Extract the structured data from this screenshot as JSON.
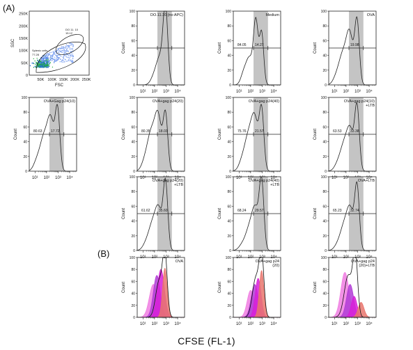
{
  "figure": {
    "label_a": "(A)",
    "label_b": "(B)",
    "x_caption": "CFSE (FL-1)"
  },
  "colors": {
    "gate_gray": "#c4c4c4",
    "line": "#222222",
    "overlay_black": "#111111",
    "overlay_white": "#ffffff",
    "overlay_red": "#e9766d",
    "overlay_magenta": "#d81ed8",
    "overlay_violet": "#b13cd6",
    "overlay_pink": "#f07ee2"
  },
  "chart_data": [
    {
      "id": "scatter",
      "type": "scatter",
      "xlabel": "FSC",
      "ylabel": "SSC",
      "x_ticks": [
        "50K",
        "100K",
        "150K",
        "200K",
        "250K"
      ],
      "y_ticks": [
        "0",
        "50K",
        "100K",
        "150K",
        "200K",
        "250K"
      ],
      "xlim": [
        0,
        262144
      ],
      "ylim": [
        0,
        262144
      ],
      "gates": [
        {
          "name": "Splenic cells",
          "value": "77.28"
        },
        {
          "name": "DO 11. 10",
          "value": "15.12"
        }
      ]
    },
    {
      "id": "h-do1110",
      "type": "histogram",
      "title": "DO.11.10 (no APC)",
      "ylabel": "Count",
      "ylim": [
        0,
        100
      ],
      "y_ticks": [
        "0",
        "20",
        "40",
        "60",
        "80",
        "100"
      ],
      "x_ticks": [
        "10¹",
        "10²",
        "10³",
        "10⁴"
      ],
      "xlim_decades": [
        0.5,
        4.6
      ],
      "gate": [
        2.25,
        3.5
      ],
      "marker_y": 50,
      "values": [],
      "peaks": [
        [
          2.95,
          0.2,
          100
        ],
        [
          2.5,
          0.3,
          35
        ],
        [
          2.0,
          0.3,
          12
        ]
      ]
    },
    {
      "id": "h-medium",
      "type": "histogram",
      "title": "Medium",
      "ylabel": "Count",
      "ylim": [
        0,
        100
      ],
      "y_ticks": [
        "0",
        "20",
        "40",
        "60",
        "80",
        "100"
      ],
      "x_ticks": [
        "10¹",
        "10²",
        "10³",
        "10⁴"
      ],
      "xlim_decades": [
        0.5,
        4.6
      ],
      "gate": [
        2.25,
        3.5
      ],
      "marker_y": 50,
      "values": [
        "84.05",
        "14.27"
      ],
      "peaks": [
        [
          2.95,
          0.18,
          70
        ],
        [
          2.45,
          0.2,
          85
        ],
        [
          1.9,
          0.28,
          35
        ],
        [
          1.4,
          0.25,
          15
        ]
      ]
    },
    {
      "id": "h-ova",
      "type": "histogram",
      "title": "OVA",
      "ylabel": "Count",
      "ylim": [
        0,
        100
      ],
      "y_ticks": [
        "0",
        "20",
        "40",
        "60",
        "80",
        "100"
      ],
      "x_ticks": [
        "10¹",
        "10²",
        "10³",
        "10⁴"
      ],
      "xlim_decades": [
        0.5,
        4.6
      ],
      "gate": [
        2.25,
        3.5
      ],
      "marker_y": 50,
      "values": [
        "",
        "19.98"
      ],
      "peaks": [
        [
          2.95,
          0.2,
          85
        ],
        [
          2.3,
          0.3,
          70
        ],
        [
          1.7,
          0.3,
          35
        ],
        [
          1.2,
          0.3,
          12
        ]
      ]
    },
    {
      "id": "h-gag10",
      "type": "histogram",
      "title": "OVA+Gag p24(10)",
      "ylabel": "Count",
      "ylim": [
        0,
        100
      ],
      "y_ticks": [
        "0",
        "20",
        "40",
        "60",
        "80",
        "100"
      ],
      "x_ticks": [
        "10¹",
        "10²",
        "10³",
        "10⁴"
      ],
      "xlim_decades": [
        0.5,
        4.6
      ],
      "gate": [
        2.25,
        3.5
      ],
      "marker_y": 50,
      "values": [
        "80.63",
        "17.72"
      ],
      "peaks": [
        [
          2.95,
          0.2,
          80
        ],
        [
          2.35,
          0.3,
          70
        ],
        [
          1.75,
          0.3,
          40
        ],
        [
          1.2,
          0.3,
          15
        ]
      ]
    },
    {
      "id": "h-gag20",
      "type": "histogram",
      "title": "OVA+gag p24(20)",
      "ylabel": "Count",
      "ylim": [
        0,
        100
      ],
      "y_ticks": [
        "0",
        "20",
        "40",
        "60",
        "80",
        "100"
      ],
      "x_ticks": [
        "10¹",
        "10²",
        "10³",
        "10⁴"
      ],
      "xlim_decades": [
        0.5,
        4.6
      ],
      "gate": [
        2.25,
        3.5
      ],
      "marker_y": 50,
      "values": [
        "80.35",
        "18.03"
      ],
      "peaks": [
        [
          2.95,
          0.2,
          75
        ],
        [
          2.3,
          0.3,
          75
        ],
        [
          1.7,
          0.3,
          45
        ],
        [
          1.2,
          0.3,
          15
        ]
      ]
    },
    {
      "id": "h-gag40",
      "type": "histogram",
      "title": "OVA+gag p24(40)",
      "ylabel": "Count",
      "ylim": [
        0,
        100
      ],
      "y_ticks": [
        "0",
        "20",
        "40",
        "60",
        "80",
        "100"
      ],
      "x_ticks": [
        "10¹",
        "10²",
        "10³",
        "10⁴"
      ],
      "xlim_decades": [
        0.5,
        4.6
      ],
      "gate": [
        2.25,
        3.5
      ],
      "marker_y": 50,
      "values": [
        "75.76",
        "21.57"
      ],
      "peaks": [
        [
          2.95,
          0.2,
          80
        ],
        [
          2.35,
          0.3,
          70
        ],
        [
          1.8,
          0.3,
          40
        ],
        [
          1.3,
          0.3,
          15
        ]
      ]
    },
    {
      "id": "h-gag10-ltb",
      "type": "histogram",
      "title": "OVA+gag p24(10)",
      "title2": "+LTB",
      "ylabel": "Count",
      "ylim": [
        0,
        100
      ],
      "y_ticks": [
        "0",
        "20",
        "40",
        "60",
        "80",
        "100"
      ],
      "x_ticks": [
        "10¹",
        "10²",
        "10³",
        "10⁴"
      ],
      "xlim_decades": [
        0.5,
        4.6
      ],
      "gate": [
        2.25,
        3.5
      ],
      "marker_y": 50,
      "values": [
        "63.53",
        "33.38"
      ],
      "peaks": [
        [
          2.95,
          0.2,
          85
        ],
        [
          2.35,
          0.3,
          55
        ],
        [
          1.8,
          0.3,
          30
        ],
        [
          1.3,
          0.3,
          10
        ]
      ]
    },
    {
      "id": "h-gag20-ltb",
      "type": "histogram",
      "title": "OVA+gag p24(20)",
      "title2": "+LTB",
      "ylabel": "Count",
      "ylim": [
        0,
        100
      ],
      "y_ticks": [
        "0",
        "20",
        "40",
        "60",
        "80",
        "100"
      ],
      "x_ticks": [
        "10¹",
        "10²",
        "10³",
        "10⁴"
      ],
      "xlim_decades": [
        0.5,
        4.6
      ],
      "gate": [
        2.25,
        3.5
      ],
      "marker_y": 50,
      "values": [
        "61.62",
        "35.60"
      ],
      "peaks": [
        [
          2.95,
          0.2,
          90
        ],
        [
          2.35,
          0.3,
          55
        ],
        [
          1.8,
          0.3,
          30
        ],
        [
          1.3,
          0.3,
          10
        ]
      ]
    },
    {
      "id": "h-gag40-ltb",
      "type": "histogram",
      "title": "OVA+gag p24(40)",
      "title2": "+LTB",
      "ylabel": "Count",
      "ylim": [
        0,
        100
      ],
      "y_ticks": [
        "0",
        "20",
        "40",
        "60",
        "80",
        "100"
      ],
      "x_ticks": [
        "10¹",
        "10²",
        "10³",
        "10⁴"
      ],
      "xlim_decades": [
        0.5,
        4.6
      ],
      "gate": [
        2.25,
        3.5
      ],
      "marker_y": 50,
      "values": [
        "68.24",
        "29.57"
      ],
      "peaks": [
        [
          2.95,
          0.2,
          90
        ],
        [
          2.4,
          0.3,
          55
        ],
        [
          1.85,
          0.3,
          25
        ],
        [
          1.3,
          0.3,
          8
        ]
      ]
    },
    {
      "id": "h-ova-ltb",
      "type": "histogram",
      "title": "OVA+LTB",
      "ylabel": "Count",
      "ylim": [
        0,
        100
      ],
      "y_ticks": [
        "0",
        "20",
        "40",
        "60",
        "80",
        "100"
      ],
      "x_ticks": [
        "10¹",
        "10²",
        "10³",
        "10⁴"
      ],
      "xlim_decades": [
        0.5,
        4.6
      ],
      "gate": [
        2.25,
        3.5
      ],
      "marker_y": 50,
      "values": [
        "65.23",
        "32.74"
      ],
      "peaks": [
        [
          2.95,
          0.2,
          85
        ],
        [
          2.35,
          0.3,
          55
        ],
        [
          1.8,
          0.3,
          28
        ],
        [
          1.3,
          0.3,
          8
        ]
      ]
    },
    {
      "id": "o-ova",
      "type": "overlay",
      "title": "OVA",
      "ylabel": "Count",
      "ylim": [
        0,
        100
      ],
      "y_ticks": [
        "0",
        "20",
        "40",
        "60",
        "80",
        "100"
      ],
      "x_ticks": [
        "10¹",
        "10²",
        "10³",
        "10⁴"
      ],
      "xlim_decades": [
        0.5,
        4.6
      ],
      "layers": [
        {
          "color": "overlay_pink",
          "peaks": [
            [
              1.9,
              0.35,
              55
            ]
          ]
        },
        {
          "color": "overlay_violet",
          "peaks": [
            [
              2.2,
              0.3,
              70
            ]
          ]
        },
        {
          "color": "overlay_magenta",
          "peaks": [
            [
              2.55,
              0.3,
              80
            ]
          ]
        },
        {
          "color": "overlay_red",
          "peaks": [
            [
              2.9,
              0.2,
              82
            ]
          ]
        },
        {
          "color": "overlay_white",
          "outline": "overlay_black",
          "peaks": [
            [
              2.9,
              0.2,
              100
            ],
            [
              2.4,
              0.3,
              60
            ]
          ]
        }
      ]
    },
    {
      "id": "o-gag",
      "type": "overlay",
      "title": "OVA+gag p24",
      "title2": "(20)",
      "ylabel": "Count",
      "ylim": [
        0,
        100
      ],
      "y_ticks": [
        "0",
        "20",
        "40",
        "60",
        "80",
        "100"
      ],
      "x_ticks": [
        "10¹",
        "10²",
        "10³",
        "10⁴"
      ],
      "xlim_decades": [
        0.5,
        4.6
      ],
      "layers": [
        {
          "color": "overlay_pink",
          "peaks": [
            [
              2.0,
              0.3,
              45
            ]
          ]
        },
        {
          "color": "overlay_violet",
          "peaks": [
            [
              2.35,
              0.3,
              55
            ]
          ]
        },
        {
          "color": "overlay_magenta",
          "peaks": [
            [
              2.65,
              0.25,
              65
            ]
          ]
        },
        {
          "color": "overlay_red",
          "peaks": [
            [
              2.95,
              0.2,
              78
            ]
          ]
        },
        {
          "color": "overlay_white",
          "outline": "overlay_black",
          "peaks": [
            [
              2.95,
              0.2,
              100
            ],
            [
              2.45,
              0.3,
              65
            ]
          ]
        }
      ]
    },
    {
      "id": "o-gag-ltb",
      "type": "overlay",
      "title": "OVA+gag p24",
      "title2": "(20)+LTB",
      "ylabel": "Count",
      "ylim": [
        0,
        100
      ],
      "y_ticks": [
        "0",
        "20",
        "40",
        "60",
        "80",
        "100"
      ],
      "x_ticks": [
        "10¹",
        "10²",
        "10³",
        "10⁴"
      ],
      "xlim_decades": [
        0.5,
        4.6
      ],
      "layers": [
        {
          "color": "overlay_pink",
          "peaks": [
            [
              1.9,
              0.35,
              75
            ]
          ]
        },
        {
          "color": "overlay_violet",
          "peaks": [
            [
              2.35,
              0.3,
              55
            ]
          ]
        },
        {
          "color": "overlay_magenta",
          "peaks": [
            [
              2.7,
              0.25,
              35
            ]
          ]
        },
        {
          "color": "overlay_red",
          "peaks": [
            [
              3.3,
              0.25,
              25
            ]
          ]
        },
        {
          "color": "overlay_white",
          "outline": "overlay_black",
          "peaks": [
            [
              2.8,
              0.2,
              100
            ],
            [
              2.2,
              0.35,
              70
            ]
          ]
        }
      ]
    }
  ]
}
